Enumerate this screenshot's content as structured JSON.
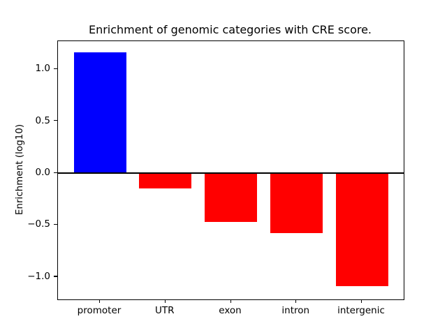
{
  "figure": {
    "background": "#ffffff"
  },
  "chart_data": {
    "type": "bar",
    "title": "Enrichment of genomic categories with CRE score.",
    "xlabel": "",
    "ylabel": "Enrichment (log10)",
    "categories": [
      "promoter",
      "UTR",
      "exon",
      "intron",
      "intergenic"
    ],
    "values": [
      1.16,
      -0.15,
      -0.47,
      -0.58,
      -1.09
    ],
    "bar_colors": [
      "#0000ff",
      "#ff0000",
      "#ff0000",
      "#ff0000",
      "#ff0000"
    ],
    "positive_color": "#0000ff",
    "negative_color": "#ff0000",
    "yticks": [
      1.0,
      0.5,
      0.0,
      -0.5,
      -1.0
    ],
    "ytick_labels": [
      "1.0",
      "0.5",
      "0.0",
      "−0.5",
      "−1.0"
    ],
    "ylim": [
      -1.215,
      1.269
    ],
    "bar_rel_width": 0.8,
    "zero_line": true,
    "grid": false,
    "legend": null,
    "axis_color": "#000000",
    "text_color": "#000000"
  }
}
